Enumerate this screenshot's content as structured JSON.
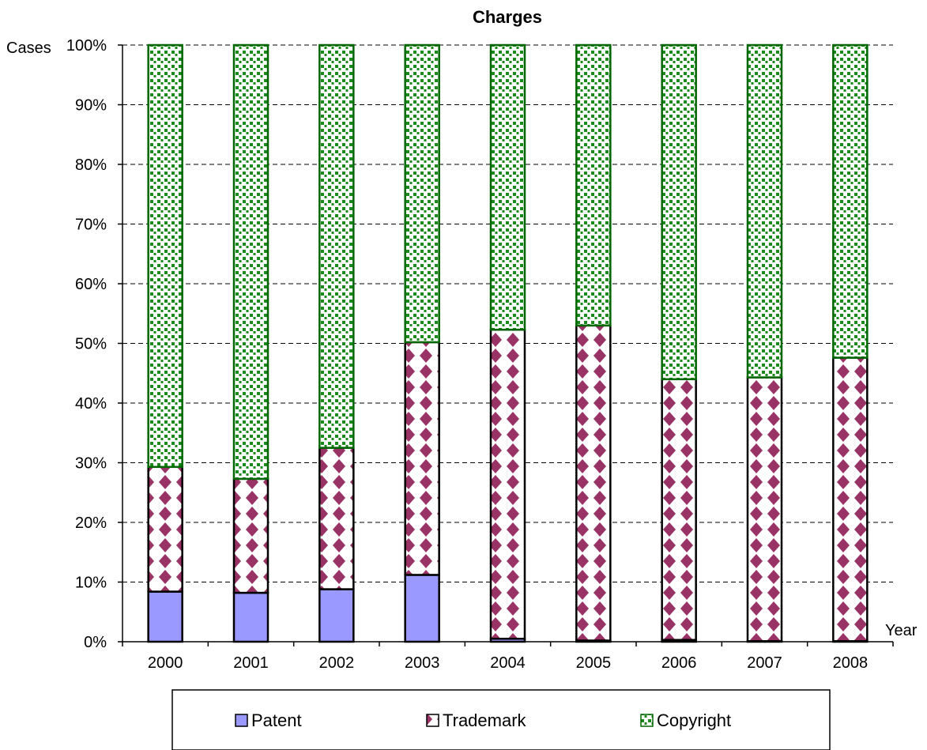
{
  "chart_data": {
    "type": "bar",
    "stacked": true,
    "percent": true,
    "title": "Charges",
    "xlabel": "Year",
    "ylabel": "Cases",
    "categories": [
      "2000",
      "2001",
      "2002",
      "2003",
      "2004",
      "2005",
      "2006",
      "2007",
      "2008"
    ],
    "ylim": [
      0,
      100
    ],
    "yticks": [
      "0%",
      "10%",
      "20%",
      "30%",
      "40%",
      "50%",
      "60%",
      "70%",
      "80%",
      "90%",
      "100%"
    ],
    "grid": true,
    "legend_position": "bottom",
    "series": [
      {
        "name": "Patent",
        "values": [
          8.4,
          8.2,
          8.8,
          11.2,
          0.5,
          0.2,
          0.3,
          0.1,
          0.1
        ]
      },
      {
        "name": "Trademark",
        "values": [
          20.9,
          19.1,
          23.7,
          39.0,
          51.8,
          52.8,
          43.7,
          44.2,
          47.5
        ]
      },
      {
        "name": "Copyright",
        "values": [
          70.7,
          72.7,
          67.5,
          49.8,
          47.7,
          47.0,
          56.0,
          55.7,
          52.4
        ]
      }
    ],
    "colors": {
      "patent": "#9999ff",
      "trademark": "#993366",
      "copyright": "#009900",
      "copyright_dark": "#006600"
    }
  }
}
